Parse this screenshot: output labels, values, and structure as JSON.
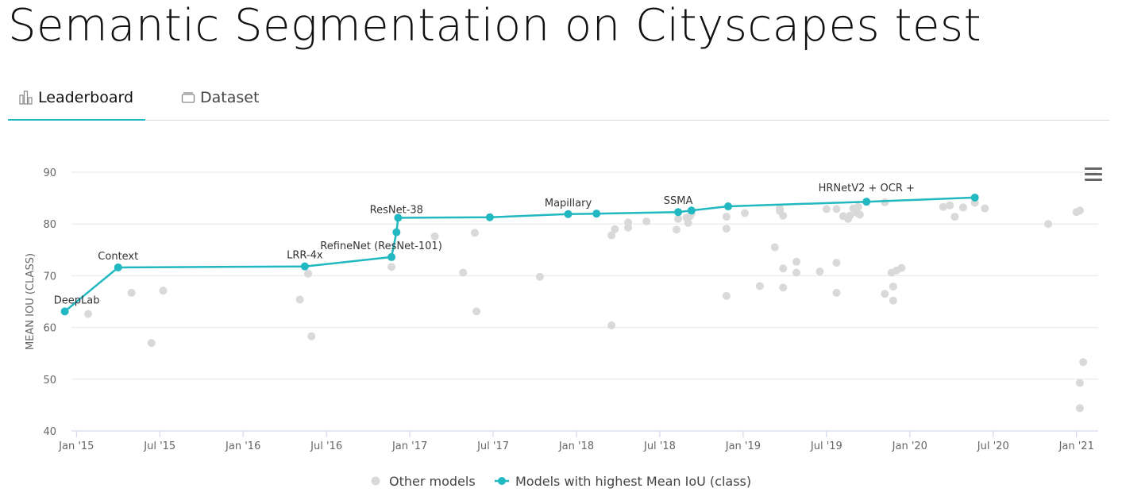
{
  "page": {
    "title": "Semantic Segmentation on Cityscapes test"
  },
  "tabs": [
    {
      "label": "Leaderboard",
      "active": true,
      "icon": "bar-chart-icon"
    },
    {
      "label": "Dataset",
      "active": false,
      "icon": "dataset-icon"
    }
  ],
  "colors": {
    "accent": "#21b8c1",
    "other": "#d9d9d9",
    "grid": "#e6e6e6"
  },
  "chart_data": {
    "type": "scatter",
    "ylabel": "MEAN IOU (CLASS)",
    "ylim": [
      40,
      90
    ],
    "y_ticks": [
      40,
      50,
      60,
      70,
      80,
      90
    ],
    "x_ticks": [
      {
        "label": "Jan '15",
        "t": 2015.0
      },
      {
        "label": "Jul '15",
        "t": 2015.5
      },
      {
        "label": "Jan '16",
        "t": 2016.0
      },
      {
        "label": "Jul '16",
        "t": 2016.5
      },
      {
        "label": "Jan '17",
        "t": 2017.0
      },
      {
        "label": "Jul '17",
        "t": 2017.5
      },
      {
        "label": "Jan '18",
        "t": 2018.0
      },
      {
        "label": "Jul '18",
        "t": 2018.5
      },
      {
        "label": "Jan '19",
        "t": 2019.0
      },
      {
        "label": "Jul '19",
        "t": 2019.5
      },
      {
        "label": "Jan '20",
        "t": 2020.0
      },
      {
        "label": "Jul '20",
        "t": 2020.5
      },
      {
        "label": "Jan '21",
        "t": 2021.0
      }
    ],
    "xlim": [
      2014.97,
      2021.13
    ],
    "legend": [
      {
        "label": "Other models",
        "kind": "dot"
      },
      {
        "label": "Models with highest Mean IoU (class)",
        "kind": "line"
      }
    ],
    "sota_series": {
      "name": "Models with highest Mean IoU (class)",
      "points": [
        {
          "t": 2014.93,
          "y": 63.1,
          "label": "DeepLab"
        },
        {
          "t": 2015.25,
          "y": 71.6,
          "label": "Context"
        },
        {
          "t": 2016.37,
          "y": 71.8,
          "label": "LRR-4x"
        },
        {
          "t": 2016.89,
          "y": 73.6,
          "label": "RefineNet (ResNet-101)"
        },
        {
          "t": 2016.92,
          "y": 78.4,
          "label": "ResNet-38"
        },
        {
          "t": 2016.93,
          "y": 81.2,
          "label": ""
        },
        {
          "t": 2017.48,
          "y": 81.3,
          "label": ""
        },
        {
          "t": 2017.95,
          "y": 81.9,
          "label": "Mapillary"
        },
        {
          "t": 2018.12,
          "y": 82.0,
          "label": ""
        },
        {
          "t": 2018.61,
          "y": 82.3,
          "label": "SSMA"
        },
        {
          "t": 2018.69,
          "y": 82.6,
          "label": ""
        },
        {
          "t": 2018.91,
          "y": 83.4,
          "label": ""
        },
        {
          "t": 2019.74,
          "y": 84.3,
          "label": "HRNetV2 + OCR +"
        },
        {
          "t": 2020.39,
          "y": 85.1,
          "label": ""
        }
      ]
    },
    "other_models": [
      [
        2015.07,
        62.6
      ],
      [
        2015.33,
        66.7
      ],
      [
        2015.45,
        57.0
      ],
      [
        2015.52,
        67.1
      ],
      [
        2016.34,
        65.4
      ],
      [
        2016.39,
        70.4
      ],
      [
        2016.41,
        58.3
      ],
      [
        2016.89,
        71.7
      ],
      [
        2017.15,
        77.6
      ],
      [
        2017.32,
        70.6
      ],
      [
        2017.39,
        78.3
      ],
      [
        2017.4,
        63.1
      ],
      [
        2017.78,
        69.8
      ],
      [
        2018.21,
        60.4
      ],
      [
        2018.21,
        77.8
      ],
      [
        2018.23,
        79.0
      ],
      [
        2018.31,
        79.3
      ],
      [
        2018.31,
        80.3
      ],
      [
        2018.42,
        80.5
      ],
      [
        2018.6,
        78.9
      ],
      [
        2018.61,
        81.0
      ],
      [
        2018.66,
        81.2
      ],
      [
        2018.67,
        80.2
      ],
      [
        2018.68,
        81.5
      ],
      [
        2018.69,
        82.0
      ],
      [
        2018.9,
        66.1
      ],
      [
        2018.9,
        79.1
      ],
      [
        2018.9,
        81.4
      ],
      [
        2019.01,
        82.1
      ],
      [
        2019.1,
        68.0
      ],
      [
        2019.19,
        75.5
      ],
      [
        2019.22,
        83.0
      ],
      [
        2019.22,
        82.5
      ],
      [
        2019.24,
        81.6
      ],
      [
        2019.24,
        71.4
      ],
      [
        2019.24,
        67.7
      ],
      [
        2019.32,
        72.7
      ],
      [
        2019.32,
        70.6
      ],
      [
        2019.46,
        70.8
      ],
      [
        2019.5,
        82.9
      ],
      [
        2019.56,
        82.9
      ],
      [
        2019.56,
        72.5
      ],
      [
        2019.56,
        66.7
      ],
      [
        2019.6,
        81.5
      ],
      [
        2019.63,
        81.0
      ],
      [
        2019.64,
        81.6
      ],
      [
        2019.66,
        83.0
      ],
      [
        2019.68,
        82.2
      ],
      [
        2019.69,
        83.3
      ],
      [
        2019.7,
        81.8
      ],
      [
        2019.85,
        84.2
      ],
      [
        2019.85,
        66.5
      ],
      [
        2019.89,
        70.6
      ],
      [
        2019.9,
        65.2
      ],
      [
        2019.9,
        67.9
      ],
      [
        2019.92,
        71.0
      ],
      [
        2019.95,
        71.5
      ],
      [
        2020.2,
        83.3
      ],
      [
        2020.24,
        83.6
      ],
      [
        2020.27,
        81.4
      ],
      [
        2020.32,
        83.2
      ],
      [
        2020.39,
        84.1
      ],
      [
        2020.45,
        83.0
      ],
      [
        2020.83,
        80.0
      ],
      [
        2021.0,
        82.3
      ],
      [
        2021.02,
        82.6
      ],
      [
        2021.02,
        49.3
      ],
      [
        2021.02,
        44.4
      ],
      [
        2021.04,
        53.3
      ]
    ]
  }
}
